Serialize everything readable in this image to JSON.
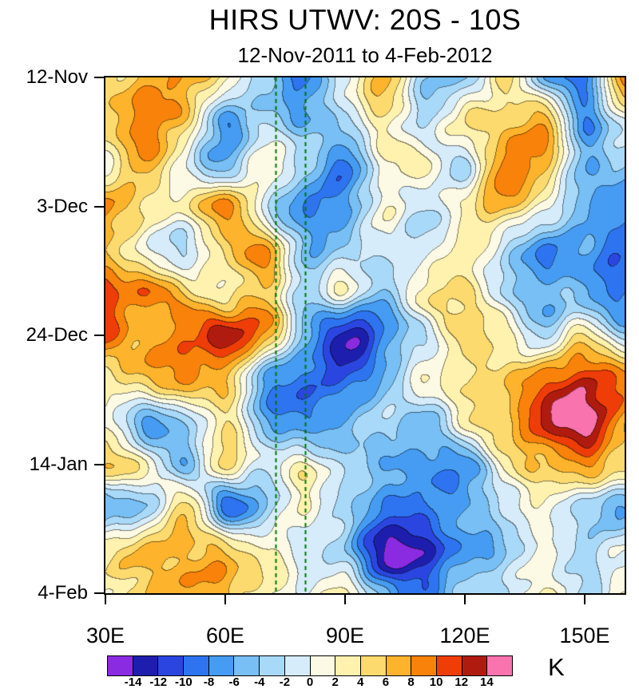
{
  "chart": {
    "title": "HIRS UTWV: 20S - 10S",
    "subtitle": "12-Nov-2011 to 4-Feb-2012",
    "colorbar_label": "K"
  },
  "chart_data": {
    "type": "heatmap",
    "title": "HIRS UTWV: 20S - 10S",
    "subtitle": "12-Nov-2011 to 4-Feb-2012",
    "units": "K",
    "x_tick_labels": [
      "30E",
      "60E",
      "90E",
      "120E",
      "150E"
    ],
    "x_tick_values": [
      30,
      60,
      90,
      120,
      150
    ],
    "x_range": [
      30,
      160
    ],
    "y_tick_labels": [
      "12-Nov",
      "3-Dec",
      "24-Dec",
      "14-Jan",
      "4-Feb"
    ],
    "y_tick_days": [
      0,
      21,
      42,
      63,
      84
    ],
    "y_range_days": [
      0,
      84
    ],
    "levels": [
      -14,
      -12,
      -10,
      -8,
      -6,
      -4,
      -2,
      0,
      2,
      4,
      6,
      8,
      10,
      12,
      14
    ],
    "level_labels": [
      "-14",
      "-12",
      "-10",
      "-8",
      "-6",
      "-4",
      "-2",
      "0",
      "2",
      "4",
      "6",
      "8",
      "10",
      "12",
      "14"
    ],
    "colors": [
      "#8A2BE2",
      "#1E1EAE",
      "#2B46E0",
      "#2E74F0",
      "#459CF2",
      "#77BFF5",
      "#A9D9F8",
      "#D6ECFA",
      "#FCFAE4",
      "#FEF2AE",
      "#FDDA6E",
      "#FDB32B",
      "#F9820A",
      "#EF3D08",
      "#B01B10",
      "#F973AE"
    ],
    "reference_lines": {
      "style": "dashed",
      "color": "#007500",
      "x_values": [
        72.5,
        80
      ]
    },
    "grid_lons": [
      30,
      40,
      50,
      60,
      70,
      80,
      90,
      100,
      110,
      120,
      130,
      140,
      150,
      160
    ],
    "grid_days": [
      0,
      7,
      14,
      21,
      28,
      35,
      42,
      49,
      56,
      63,
      70,
      77,
      84
    ],
    "values": [
      [
        4,
        6,
        8,
        3,
        -3,
        -9,
        0,
        6,
        -3,
        -4,
        5,
        -6,
        -8,
        9
      ],
      [
        6,
        9,
        6,
        -6,
        -2,
        -6,
        -2,
        3,
        -2,
        5,
        5,
        7,
        -7,
        0
      ],
      [
        2,
        7,
        0,
        -5,
        3,
        -3,
        -8,
        1,
        3,
        -2,
        10,
        6,
        -5,
        -4
      ],
      [
        9,
        5,
        2,
        9,
        -2,
        -7,
        -6,
        2,
        -3,
        3,
        6,
        2,
        -5,
        -7
      ],
      [
        6,
        2,
        -3,
        5,
        7,
        -4,
        -3,
        0,
        -2,
        3,
        -3,
        -7,
        -6,
        -9
      ],
      [
        10,
        9,
        5,
        2,
        6,
        -3,
        1,
        -5,
        3,
        4,
        -2,
        -5,
        -6,
        -9
      ],
      [
        10,
        6,
        9,
        12.5,
        8,
        -5,
        -14.3,
        -8,
        -2,
        5,
        3,
        -3,
        4,
        -4
      ],
      [
        3,
        6,
        8,
        6,
        -6,
        -9,
        -10,
        -6,
        2,
        3,
        6,
        9,
        11,
        9
      ],
      [
        2,
        -7,
        -3,
        4,
        -5,
        -8,
        -6,
        -3,
        -5,
        3,
        6,
        12,
        15,
        6
      ],
      [
        5,
        3,
        -5,
        4,
        -2,
        2,
        -3,
        -5,
        -7,
        -8,
        2,
        6,
        8,
        5
      ],
      [
        -6,
        -3,
        5,
        -9,
        -5,
        2,
        -3,
        -7,
        -9,
        -6,
        -3,
        2,
        -3,
        -5
      ],
      [
        3,
        6,
        7,
        6,
        3,
        -2,
        -4,
        -15.5,
        -12,
        -7,
        -4,
        0,
        -3,
        0
      ],
      [
        2,
        5,
        8,
        6,
        3,
        0,
        2,
        -6,
        -9,
        -3,
        -2,
        2,
        -3,
        2
      ]
    ]
  }
}
